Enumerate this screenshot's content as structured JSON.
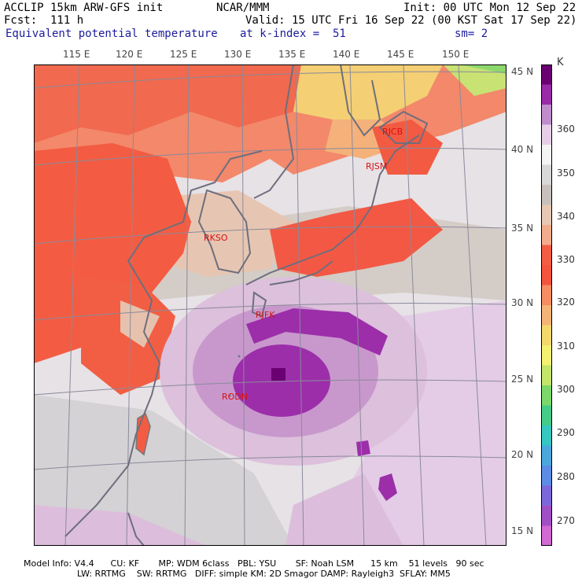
{
  "header": {
    "line1_left": "ACCLIP 15km ARW-GFS init",
    "line1_center": "NCAR/MMM",
    "line1_right": "Init: 00 UTC Mon 12 Sep 22",
    "line2_left": "Fcst:  111 h",
    "line2_right": "Valid: 15 UTC Fri 16 Sep 22 (00 KST Sat 17 Sep 22)",
    "line3_left": "Equivalent potential temperature",
    "line3_center": "at k-index =  51",
    "line3_right": "sm= 2"
  },
  "lon_labels": [
    "115 E",
    "120 E",
    "125 E",
    "130 E",
    "135 E",
    "140 E",
    "145 E",
    "150 E"
  ],
  "lat_labels": [
    "45 N",
    "40 N",
    "35 N",
    "30 N",
    "25 N",
    "20 N",
    "15 N"
  ],
  "stations": [
    "RJCB",
    "RJSM",
    "RKSO",
    "RJFK",
    "RODN"
  ],
  "colorbar": {
    "unit": "K",
    "labels": [
      "360",
      "350",
      "340",
      "330",
      "320",
      "310",
      "300",
      "290",
      "280",
      "270"
    ],
    "colors": [
      "#6a0072",
      "#9a2aa6",
      "#c08ccc",
      "#e6cfe6",
      "#f4f4f4",
      "#d8d8d8",
      "#c8c0bc",
      "#e8c8b2",
      "#f3ab8e",
      "#f25e44",
      "#f4533e",
      "#f58c62",
      "#f4b377",
      "#f4d86c",
      "#f4f070",
      "#c4e46a",
      "#7cd86a",
      "#44cc88",
      "#34c8c0",
      "#4aa8dc",
      "#5c8ce6",
      "#7c68dc",
      "#a050c4",
      "#d268d2"
    ]
  },
  "footer": {
    "line1": "Model Info: V4.4      CU: KF       MP: WDM 6class   PBL: YSU       SF: Noah LSM      15 km    51 levels   90 sec",
    "line2": "LW: RRTMG    SW: RRTMG   DIFF: simple KM: 2D Smagor DAMP: Rayleigh3  SFLAY: MM5"
  }
}
